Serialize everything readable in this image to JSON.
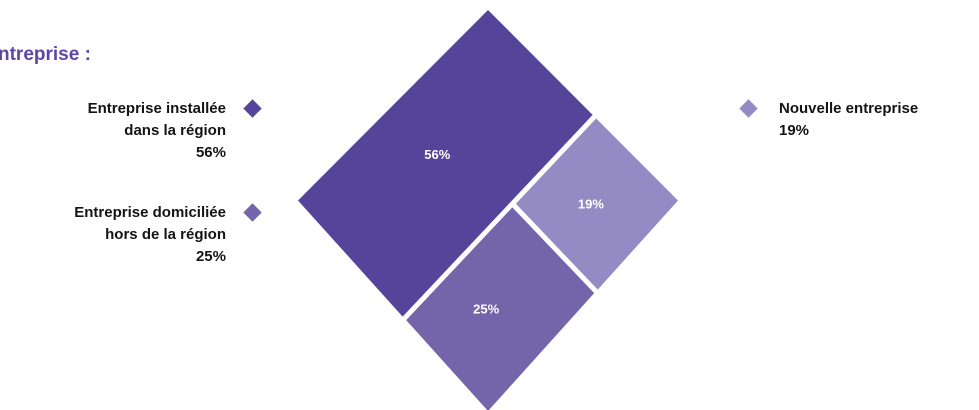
{
  "heading": "ntreprise :",
  "chart_data": {
    "type": "treemap",
    "title": "",
    "segments": [
      {
        "label_lines": [
          "Entreprise installée",
          "dans la région"
        ],
        "value": 56,
        "value_label": "56%",
        "color": "#54459a",
        "legend_side": "left"
      },
      {
        "label_lines": [
          "Entreprise domiciliée",
          "hors de la région"
        ],
        "value": 25,
        "value_label": "25%",
        "color": "#7465ab",
        "legend_side": "left"
      },
      {
        "label_lines": [
          "Nouvelle entreprise"
        ],
        "value": 19,
        "value_label": "19%",
        "color": "#958bc4",
        "legend_side": "right"
      }
    ]
  }
}
